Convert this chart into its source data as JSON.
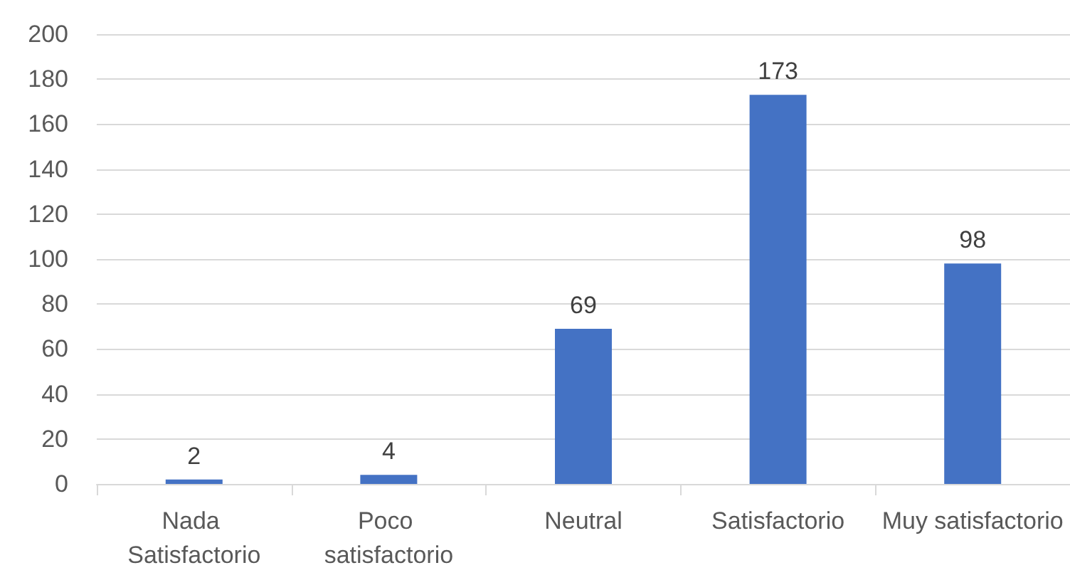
{
  "chart_data": {
    "type": "bar",
    "categories": [
      "Nada Satisfactorio",
      "Poco satisfactorio",
      "Neutral",
      "Satisfactorio",
      "Muy satisfactorio"
    ],
    "values": [
      2,
      4,
      69,
      173,
      98
    ],
    "color": "#4472c4",
    "ylim": [
      0,
      200
    ],
    "yticks": [
      0,
      20,
      40,
      60,
      80,
      100,
      120,
      140,
      160,
      180,
      200
    ],
    "grid": "y",
    "data_labels": true
  }
}
